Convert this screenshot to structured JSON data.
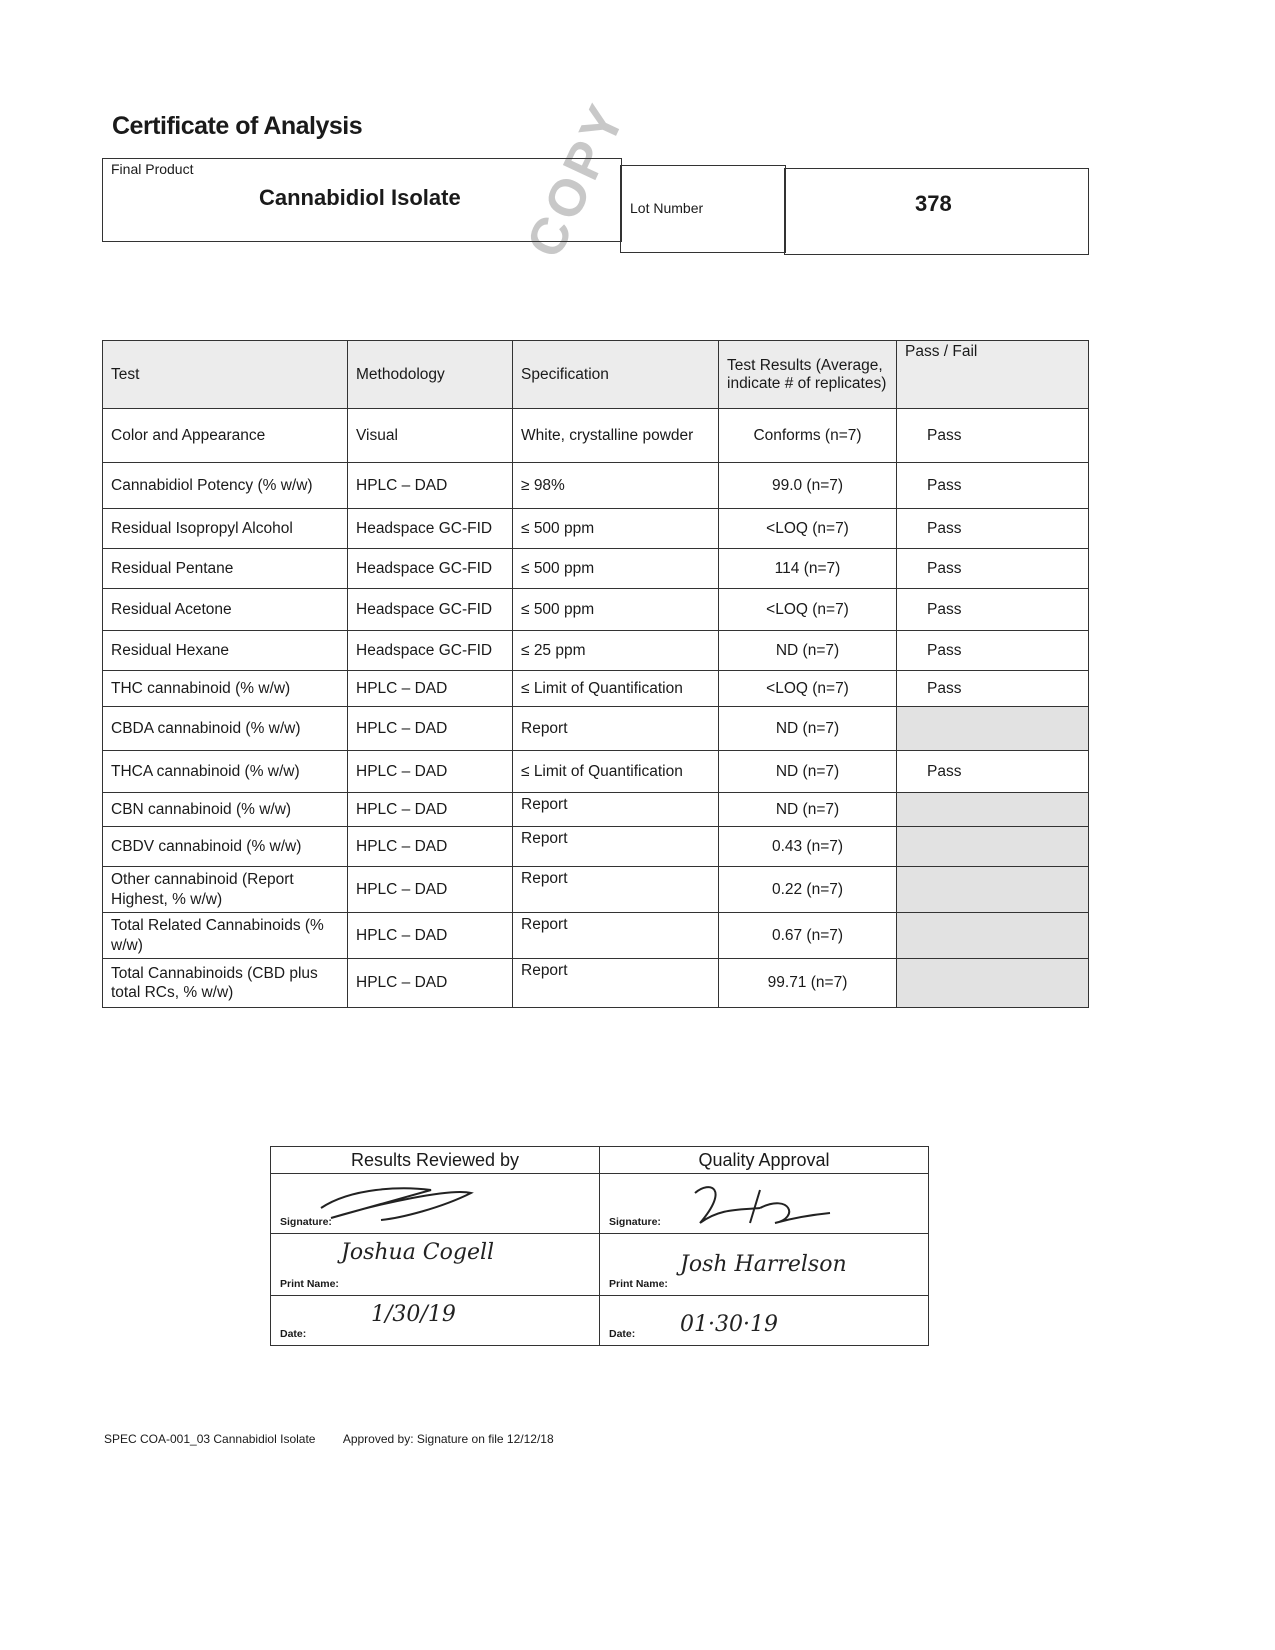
{
  "title": "Certificate of Analysis",
  "stamp": "COPY",
  "product": {
    "label": "Final Product",
    "name": "Cannabidiol Isolate",
    "lot_label": "Lot Number",
    "lot": "378"
  },
  "table": {
    "headers": [
      "Test",
      "Methodology",
      "Specification",
      "Test Results (Average, indicate # of replicates)",
      "Pass / Fail"
    ],
    "rows": [
      [
        "Color and Appearance",
        "Visual",
        "White, crystalline powder",
        "Conforms (n=7)",
        "Pass"
      ],
      [
        "Cannabidiol Potency (% w/w)",
        "HPLC – DAD",
        "≥ 98%",
        "99.0 (n=7)",
        "Pass"
      ],
      [
        "Residual Isopropyl Alcohol",
        "Headspace GC-FID",
        "≤ 500 ppm",
        "<LOQ (n=7)",
        "Pass"
      ],
      [
        "Residual Pentane",
        "Headspace GC-FID",
        "≤ 500 ppm",
        "114 (n=7)",
        "Pass"
      ],
      [
        "Residual Acetone",
        "Headspace GC-FID",
        "≤ 500 ppm",
        "<LOQ (n=7)",
        "Pass"
      ],
      [
        "Residual Hexane",
        "Headspace GC-FID",
        "≤ 25 ppm",
        "ND (n=7)",
        "Pass"
      ],
      [
        "THC cannabinoid (% w/w)",
        "HPLC – DAD",
        "≤ Limit of Quantification",
        "<LOQ (n=7)",
        "Pass"
      ],
      [
        "CBDA cannabinoid (% w/w)",
        "HPLC – DAD",
        "Report",
        "ND (n=7)",
        ""
      ],
      [
        "THCA cannabinoid (% w/w)",
        "HPLC – DAD",
        "≤ Limit of Quantification",
        "ND (n=7)",
        "Pass"
      ],
      [
        "CBN cannabinoid (% w/w)",
        "HPLC – DAD",
        "Report",
        "ND (n=7)",
        ""
      ],
      [
        "CBDV cannabinoid (% w/w)",
        "HPLC – DAD",
        "Report",
        "0.43 (n=7)",
        ""
      ],
      [
        "Other cannabinoid (Report Highest, % w/w)",
        "HPLC – DAD",
        "Report",
        "0.22 (n=7)",
        ""
      ],
      [
        "Total Related Cannabinoids (% w/w)",
        "HPLC – DAD",
        "Report",
        "0.67 (n=7)",
        ""
      ],
      [
        "Total Cannabinoids (CBD plus total RCs, % w/w)",
        "HPLC – DAD",
        "Report",
        "99.71 (n=7)",
        ""
      ]
    ]
  },
  "approval": {
    "reviewed": {
      "heading": "Results Reviewed by",
      "signature_label": "Signature:",
      "print_label": "Print Name:",
      "print_name": "Joshua Cogell",
      "date_label": "Date:",
      "date": "1/30/19"
    },
    "quality": {
      "heading": "Quality Approval",
      "signature_label": "Signature:",
      "print_label": "Print Name:",
      "print_name": "Josh Harrelson",
      "date_label": "Date:",
      "date": "01·30·19"
    }
  },
  "footer": {
    "doc": "SPEC COA-001_03 Cannabidiol Isolate",
    "approved": "Approved by: Signature on file 12/12/18"
  }
}
